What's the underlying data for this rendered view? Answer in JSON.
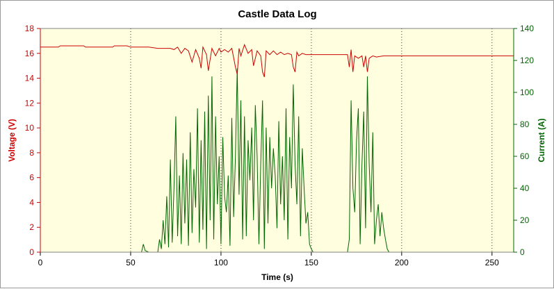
{
  "chart_data": {
    "type": "line",
    "title": "Castle Data Log",
    "xlabel": "Time (s)",
    "ylabel_left": "Voltage (V)",
    "ylabel_right": "Current (A)",
    "xlim": [
      0,
      262
    ],
    "ylim_left": [
      0,
      18
    ],
    "ylim_right": [
      0,
      140
    ],
    "xticks": [
      0,
      50,
      100,
      150,
      200,
      250
    ],
    "yticks_left": [
      0,
      2,
      4,
      6,
      8,
      10,
      12,
      14,
      16,
      18
    ],
    "yticks_right": [
      0,
      20,
      40,
      60,
      80,
      100,
      120,
      140
    ],
    "grid": "vertical-dotted",
    "colors": {
      "voltage": "#cc0000",
      "current": "#006400",
      "plot_background": "#ffffdf",
      "left_axis": "#cc0000",
      "right_axis": "#006400"
    },
    "series": [
      {
        "name": "Voltage (V)",
        "axis": "left",
        "x": [
          0,
          10,
          11,
          24,
          25,
          40,
          41,
          48,
          50,
          55,
          60,
          65,
          70,
          72,
          74,
          76,
          78,
          80,
          82,
          84,
          86,
          88,
          89,
          90,
          92,
          93,
          95,
          97,
          99,
          100,
          102,
          104,
          106,
          108,
          109,
          110,
          111,
          113,
          115,
          117,
          118,
          120,
          122,
          123,
          124,
          125,
          127,
          129,
          131,
          133,
          135,
          137,
          139,
          140,
          141,
          142,
          143,
          145,
          147,
          150,
          155,
          170,
          171,
          172,
          173,
          174,
          176,
          178,
          179,
          180,
          181,
          182,
          184,
          186,
          190,
          195,
          205,
          262
        ],
        "y": [
          16.5,
          16.5,
          16.6,
          16.6,
          16.5,
          16.5,
          16.6,
          16.6,
          16.5,
          16.5,
          16.5,
          16.4,
          16.4,
          16.4,
          16.3,
          16.5,
          16.0,
          16.4,
          16.2,
          15.3,
          16.3,
          15.6,
          14.8,
          16.5,
          15.9,
          14.6,
          16.4,
          15.8,
          16.4,
          16.1,
          16.3,
          16.1,
          16.4,
          14.9,
          14.3,
          16.4,
          15.8,
          16.7,
          16.0,
          16.3,
          15.0,
          16.2,
          15.8,
          14.5,
          14.1,
          16.2,
          15.9,
          16.2,
          15.9,
          16.1,
          15.9,
          16.0,
          15.9,
          14.9,
          14.5,
          16.1,
          15.8,
          16.0,
          15.9,
          15.9,
          15.9,
          15.9,
          14.9,
          16.3,
          14.5,
          15.8,
          15.6,
          15.8,
          14.9,
          15.8,
          14.5,
          15.6,
          15.8,
          15.7,
          15.8,
          15.8,
          15.8,
          15.8
        ]
      },
      {
        "name": "Current (A)",
        "axis": "right",
        "x": [
          0,
          56,
          57,
          58,
          60,
          65,
          66,
          67,
          68,
          69,
          70,
          71,
          72,
          73,
          74,
          75,
          76,
          77,
          78,
          79,
          80,
          81,
          82,
          83,
          84,
          85,
          86,
          87,
          88,
          89,
          90,
          91,
          92,
          93,
          94,
          95,
          96,
          97,
          98,
          99,
          100,
          101,
          102,
          103,
          104,
          105,
          106,
          107,
          108,
          109,
          110,
          111,
          112,
          113,
          114,
          115,
          116,
          117,
          118,
          119,
          120,
          121,
          122,
          123,
          124,
          125,
          126,
          127,
          128,
          129,
          130,
          131,
          132,
          133,
          134,
          135,
          136,
          137,
          138,
          139,
          140,
          141,
          142,
          143,
          144,
          145,
          146,
          147,
          148,
          149,
          150,
          151,
          152,
          170,
          171,
          172,
          173,
          174,
          175,
          176,
          177,
          178,
          179,
          180,
          181,
          182,
          183,
          184,
          185,
          186,
          187,
          188,
          189,
          190,
          191,
          192,
          193,
          262
        ],
        "y": [
          0,
          0,
          5,
          1,
          0,
          0,
          8,
          2,
          20,
          5,
          35,
          3,
          58,
          6,
          40,
          85,
          10,
          48,
          5,
          62,
          18,
          58,
          4,
          75,
          12,
          52,
          28,
          90,
          6,
          70,
          14,
          88,
          2,
          98,
          20,
          110,
          8,
          85,
          30,
          60,
          5,
          72,
          35,
          25,
          48,
          4,
          84,
          22,
          60,
          115,
          36,
          95,
          8,
          85,
          10,
          70,
          45,
          78,
          20,
          92,
          60,
          5,
          55,
          95,
          2,
          78,
          18,
          72,
          40,
          65,
          48,
          15,
          82,
          30,
          60,
          20,
          90,
          8,
          72,
          40,
          105,
          55,
          30,
          85,
          10,
          65,
          40,
          18,
          25,
          5,
          2,
          0,
          0,
          0,
          8,
          95,
          40,
          25,
          70,
          90,
          5,
          55,
          88,
          15,
          110,
          55,
          25,
          75,
          5,
          20,
          30,
          10,
          25,
          15,
          8,
          2,
          0,
          0
        ]
      }
    ]
  }
}
